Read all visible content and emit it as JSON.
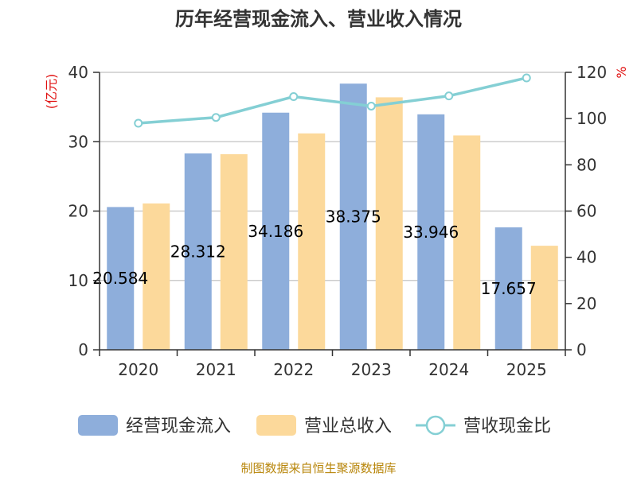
{
  "chart_data": {
    "type": "bar",
    "title": "历年经营现金流入、营业收入情况",
    "categories": [
      "2020",
      "2021",
      "2022",
      "2023",
      "2024",
      "2025"
    ],
    "y_left": {
      "unit": "(亿元)",
      "range": [
        0,
        40
      ],
      "ticks": [
        "0",
        "10",
        "20",
        "30",
        "40"
      ]
    },
    "y_right": {
      "unit": "%",
      "range": [
        0,
        120
      ],
      "ticks": [
        "0",
        "20",
        "40",
        "60",
        "80",
        "100",
        "120"
      ]
    },
    "series": [
      {
        "name": "经营现金流入",
        "kind": "bar",
        "axis": "left",
        "color": "#8eaedb",
        "values": [
          20.584,
          28.312,
          34.186,
          38.375,
          33.946,
          17.657
        ],
        "labels": [
          "20.584",
          "28.312",
          "34.186",
          "38.375",
          "33.946",
          "17.657"
        ]
      },
      {
        "name": "营业总收入",
        "kind": "bar",
        "axis": "left",
        "color": "#fcd99b",
        "values": [
          21.1,
          28.2,
          31.2,
          36.4,
          30.9,
          15.0
        ]
      },
      {
        "name": "营收现金比",
        "kind": "line",
        "axis": "right",
        "color": "#84cfd4",
        "values": [
          98,
          100.5,
          109.5,
          105.4,
          109.8,
          117.6
        ]
      }
    ],
    "grid": true,
    "legend_position": "bottom",
    "source": "制图数据来自恒生聚源数据库"
  }
}
